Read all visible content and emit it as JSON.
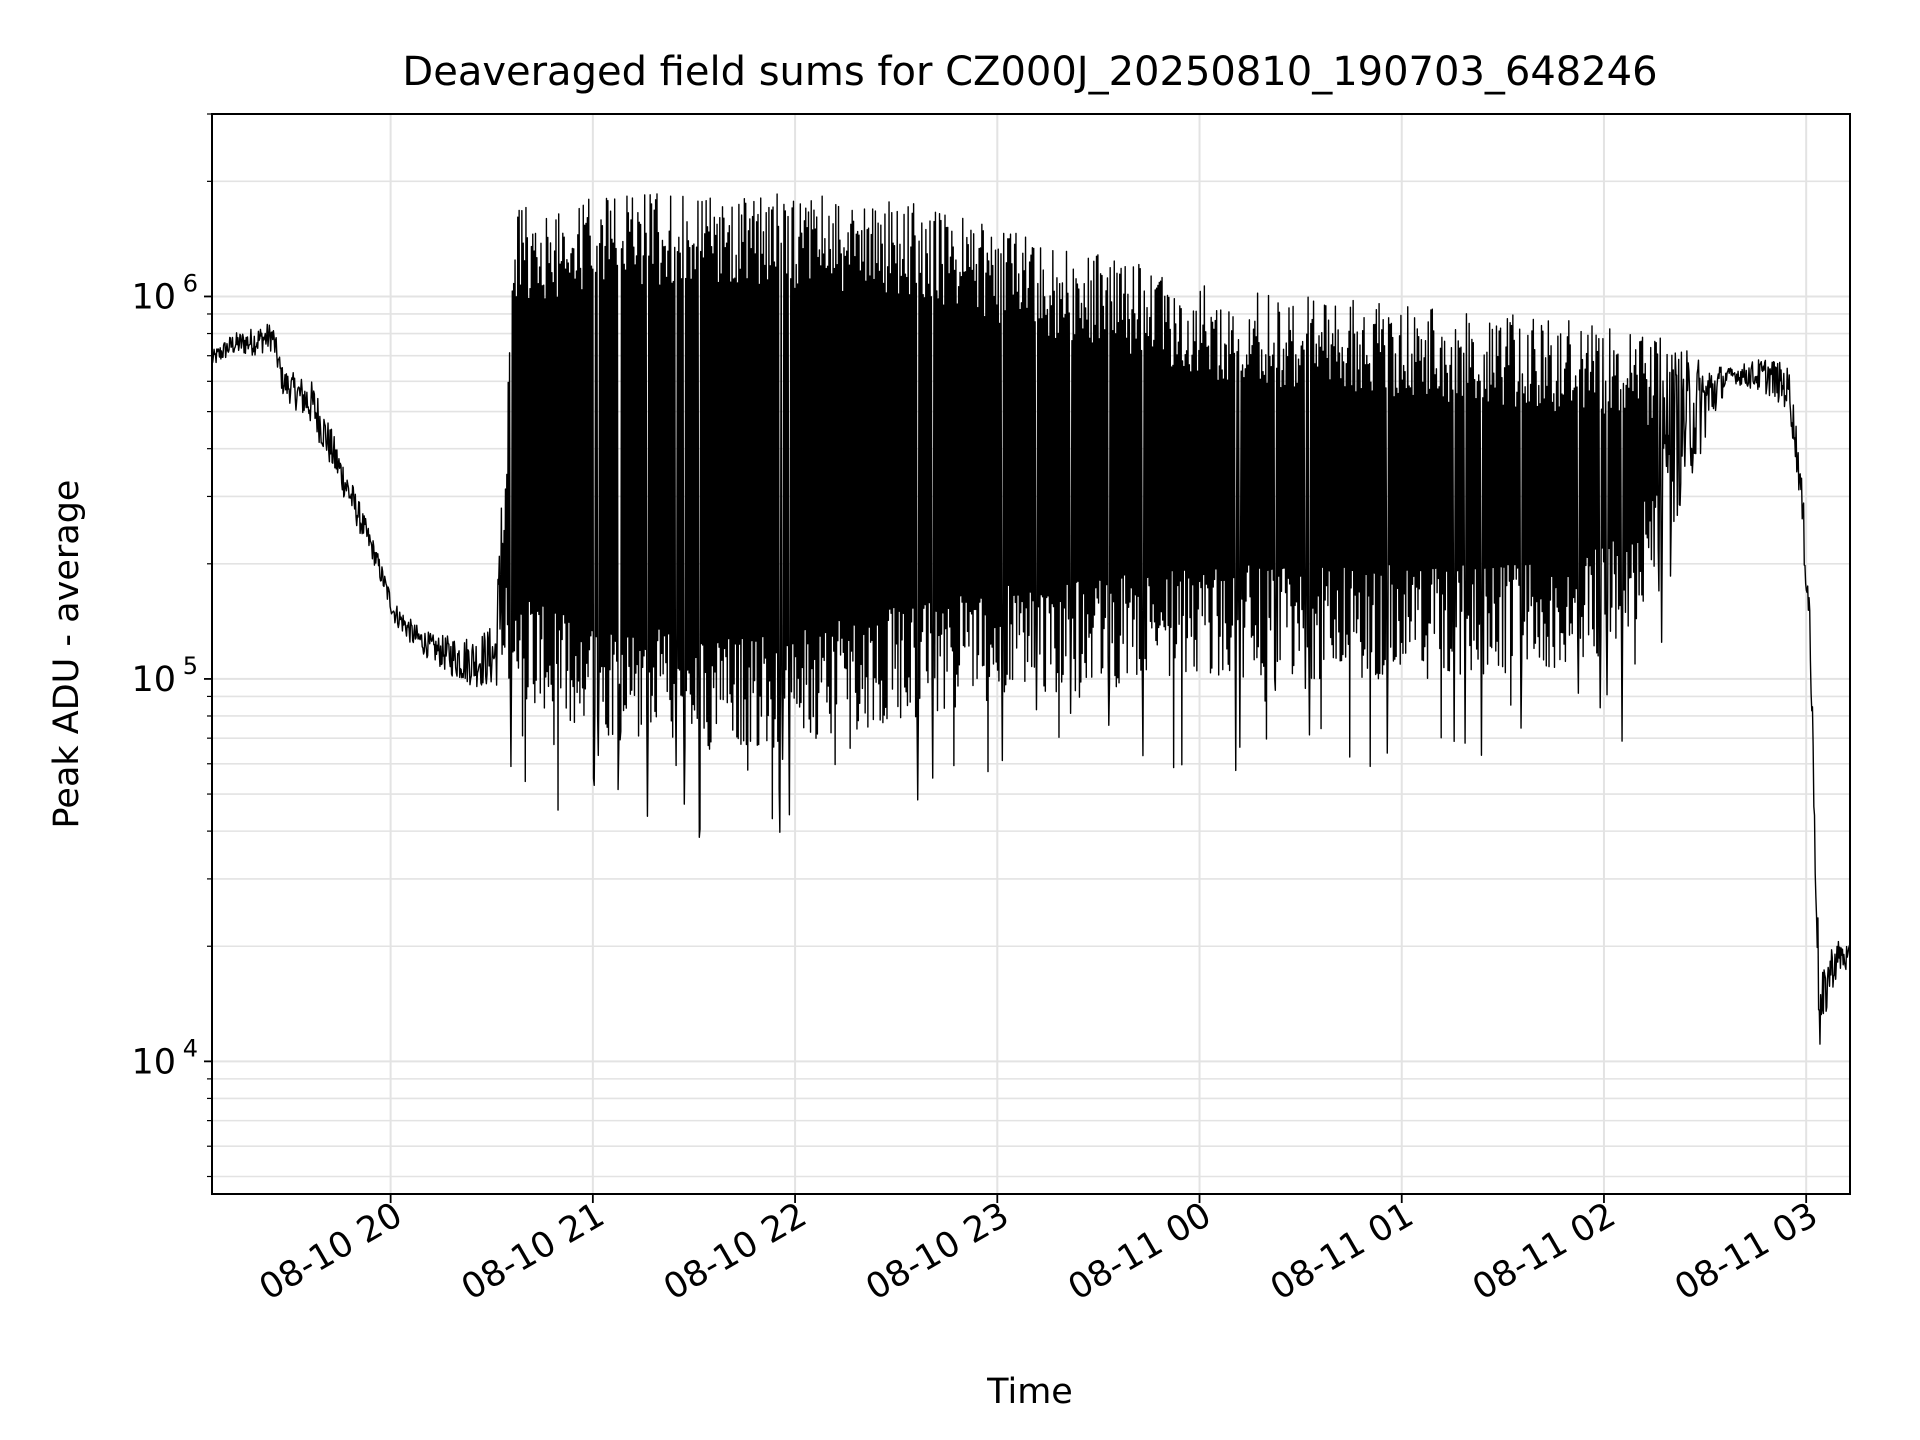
{
  "chart_data": {
    "type": "line",
    "title": "Deaveraged field sums for CZ000J_20250810_190703_648246",
    "xlabel": "Time",
    "ylabel": "Peak ADU - average",
    "y_scale": "log",
    "grid": true,
    "legend": "none",
    "line_color": "#000000",
    "grid_color": "#e3e3e3",
    "x_range": [
      "2025-08-10 19:07:00",
      "2025-08-11 03:13:00"
    ],
    "ylim": [
      4500,
      3000000
    ],
    "x_ticks": [
      "08-10 20",
      "08-10 21",
      "08-10 22",
      "08-10 23",
      "08-11 00",
      "08-11 01",
      "08-11 02",
      "08-11 03"
    ],
    "y_ticks": [
      {
        "value": 10000,
        "base": "10",
        "exp": "4"
      },
      {
        "value": 100000,
        "base": "10",
        "exp": "5"
      },
      {
        "value": 1000000,
        "base": "10",
        "exp": "6"
      }
    ],
    "series": [
      {
        "x_offset_hours": [
          0.0,
          0.1,
          0.2,
          0.3,
          0.35,
          0.5,
          0.7,
          0.8,
          0.9,
          1.0,
          1.1,
          1.2,
          1.3,
          1.4,
          1.5,
          1.6,
          1.7,
          1.75,
          2.0,
          2.5,
          3.0,
          3.5,
          4.0,
          4.5,
          5.0,
          5.5,
          6.0,
          6.5,
          7.0,
          7.5,
          7.7,
          7.8,
          7.85,
          7.9,
          7.95,
          8.0,
          8.05,
          8.1
        ],
        "y_upper": [
          720000,
          800000,
          830000,
          860000,
          650000,
          600000,
          320000,
          230000,
          160000,
          140000,
          130000,
          130000,
          130000,
          140000,
          1700000,
          1750000,
          1750000,
          1800000,
          1850000,
          1900000,
          1850000,
          1750000,
          1450000,
          1250000,
          1050000,
          1000000,
          950000,
          900000,
          850000,
          650000,
          700000,
          650000,
          400000,
          180000,
          16000,
          20000,
          21000,
          20000
        ],
        "y_lower": [
          650000,
          700000,
          700000,
          720000,
          550000,
          450000,
          260000,
          200000,
          140000,
          120000,
          110000,
          100000,
          95000,
          95000,
          90000,
          85000,
          80000,
          75000,
          70000,
          65000,
          70000,
          80000,
          90000,
          95000,
          100000,
          100000,
          100000,
          100000,
          120000,
          600000,
          550000,
          500000,
          300000,
          120000,
          10000,
          15000,
          17000,
          17000
        ],
        "y_min_dips": [
          45000,
          42000,
          68000,
          48000,
          62000
        ],
        "y_max_spike": 2250000
      }
    ]
  }
}
